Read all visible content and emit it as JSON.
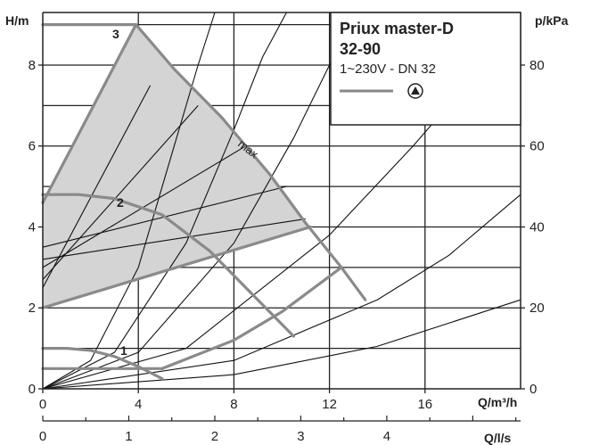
{
  "chart_data": {
    "type": "line",
    "title": "Priux master-D",
    "model": "32-90",
    "subtitle": "1~230V - DN 32",
    "xlabel": "Q/m³/h",
    "x2label": "Q/l/s",
    "ylabel": "H/m",
    "y2label": "p/kPa",
    "xlim": [
      0,
      20
    ],
    "ylim": [
      0,
      9.3
    ],
    "x_ticks": [
      0,
      4,
      8,
      12,
      16
    ],
    "y_ticks": [
      0,
      2,
      4,
      6,
      8
    ],
    "x2_ticks": [
      0,
      1,
      2,
      3,
      4
    ],
    "y2_ticks": [
      0,
      20,
      40,
      60,
      80
    ],
    "grid": true,
    "legend": {
      "placement": "top-right",
      "symbol_icon": "pump-triangle-circle-icon"
    },
    "curve_labels": {
      "setting_1": "1",
      "setting_2": "2",
      "setting_3": "3",
      "max": "max"
    },
    "series": [
      {
        "name": "3",
        "x": [
          0,
          3.9
        ],
        "y": [
          9.0,
          9.0
        ]
      },
      {
        "name": "max",
        "x": [
          3.9,
          5.5,
          7.5,
          9.5,
          11.0,
          12.5,
          13.5
        ],
        "y": [
          9.0,
          7.9,
          6.7,
          5.3,
          4.1,
          3.0,
          2.2
        ]
      },
      {
        "name": "2",
        "x": [
          0,
          1.5,
          3.0,
          5.0,
          7.0,
          9.0,
          10.5
        ],
        "y": [
          4.8,
          4.8,
          4.7,
          4.3,
          3.4,
          2.2,
          1.3
        ]
      },
      {
        "name": "1",
        "x": [
          0,
          1.0,
          2.0,
          3.0,
          4.0,
          5.0
        ],
        "y": [
          1.0,
          1.0,
          0.95,
          0.8,
          0.55,
          0.25
        ]
      },
      {
        "name": "",
        "x": [
          0,
          5.0
        ],
        "y": [
          0.5,
          0.5
        ]
      },
      {
        "name": "",
        "x": [
          0,
          3.9
        ],
        "y": [
          4.6,
          9.0
        ]
      },
      {
        "name": "",
        "x": [
          0,
          11.2
        ],
        "y": [
          2.0,
          4.0
        ]
      },
      {
        "name": "",
        "x": [
          5.0,
          8.0,
          10.0,
          12.5
        ],
        "y": [
          0.5,
          1.2,
          1.9,
          3.0
        ]
      }
    ],
    "speed_lines": [
      {
        "x": [
          0,
          4.5
        ],
        "y": [
          2.5,
          7.5
        ]
      },
      {
        "x": [
          0,
          6.5
        ],
        "y": [
          2.7,
          7.0
        ]
      },
      {
        "x": [
          0,
          8.5
        ],
        "y": [
          3.0,
          6.0
        ]
      },
      {
        "x": [
          0,
          10.2
        ],
        "y": [
          3.5,
          5.0
        ]
      },
      {
        "x": [
          0,
          11.0
        ],
        "y": [
          3.2,
          4.2
        ]
      }
    ],
    "system_curves": [
      {
        "x": [
          0,
          2,
          4,
          5.5,
          6.5,
          7.2
        ],
        "y": [
          0,
          0.7,
          3.0,
          6.0,
          8.0,
          9.3
        ]
      },
      {
        "x": [
          0,
          3,
          6,
          8,
          9.2,
          10.2
        ],
        "y": [
          0,
          0.9,
          3.6,
          6.4,
          8.2,
          9.3
        ]
      },
      {
        "x": [
          0,
          4,
          8,
          10.5,
          12,
          13.3
        ],
        "y": [
          0,
          0.9,
          3.6,
          6.2,
          8.0,
          9.3
        ]
      },
      {
        "x": [
          0,
          6,
          12,
          15.5,
          18,
          19.9
        ],
        "y": [
          0,
          1.0,
          3.8,
          6.0,
          7.7,
          9.3
        ]
      },
      {
        "x": [
          0,
          8,
          14,
          17,
          20
        ],
        "y": [
          0,
          0.7,
          2.2,
          3.3,
          4.8
        ]
      },
      {
        "x": [
          0,
          8,
          14,
          20
        ],
        "y": [
          0,
          0.35,
          1.05,
          2.2
        ]
      }
    ]
  }
}
